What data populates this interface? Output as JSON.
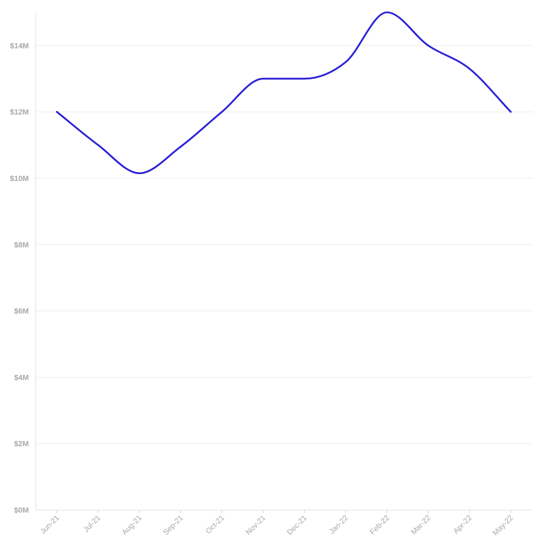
{
  "chart_data": {
    "type": "line",
    "title": "",
    "xlabel": "",
    "ylabel": "",
    "categories": [
      "Jun-21",
      "Jul-21",
      "Aug-21",
      "Sep-21",
      "Oct-21",
      "Nov-21",
      "Dec-21",
      "Jan-22",
      "Feb-22",
      "Mar-22",
      "Apr-22",
      "May-22"
    ],
    "series": [
      {
        "values": [
          12.0,
          11.0,
          10.15,
          10.95,
          12.0,
          13.0,
          13.0,
          13.5,
          15.0,
          14.0,
          13.3,
          12.0
        ],
        "color": "#2a1fd6"
      }
    ],
    "ylim": [
      0,
      15
    ],
    "y_ticks": [
      0,
      2,
      4,
      6,
      8,
      10,
      12,
      14
    ],
    "y_tick_labels": [
      "$0M",
      "$2M",
      "$4M",
      "$6M",
      "$8M",
      "$10M",
      "$12M",
      "$14M"
    ],
    "y_unit": "USD millions",
    "grid": true,
    "legend": "none",
    "curve": "smooth"
  }
}
